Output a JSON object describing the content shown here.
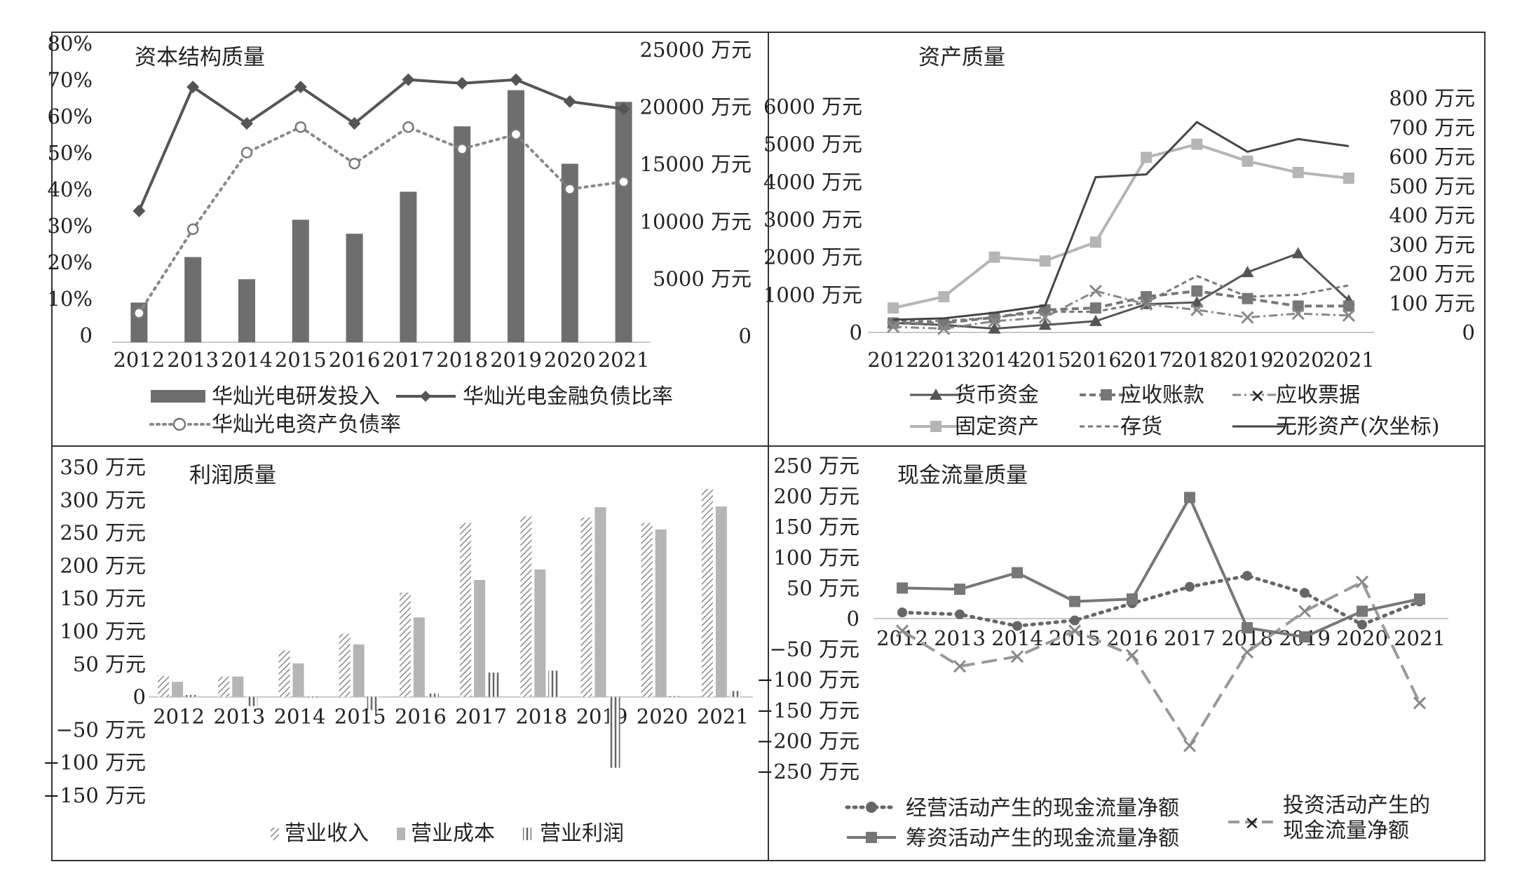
{
  "colors": {
    "dark": "#555555",
    "mid": "#777777",
    "light": "#b5b5b5",
    "dashed": "#8a8a8a",
    "axis": "#c8c8c8",
    "frame": "#333333"
  },
  "chart_data": [
    {
      "type": "bar",
      "title": "资本结构质量",
      "categories": [
        "2012",
        "2013",
        "2014",
        "2015",
        "2016",
        "2017",
        "2018",
        "2019",
        "2020",
        "2021"
      ],
      "y_ticks": [
        "80%",
        "70%",
        "60%",
        "50%",
        "40%",
        "30%",
        "20%",
        "10%",
        "0"
      ],
      "y2_ticks": [
        "25000 万元",
        "20000 万元",
        "15000 万元",
        "10000 万元",
        "5000 万元",
        "0"
      ],
      "ylim": [
        0,
        0.8
      ],
      "y2lim": [
        0,
        25000
      ],
      "series": [
        {
          "name": "华灿光电研发投入",
          "kind": "bar",
          "axis": "right",
          "values": [
            3400,
            7300,
            5400,
            10500,
            9300,
            12900,
            18500,
            21600,
            15300,
            20600
          ]
        },
        {
          "name": "华灿光电金融负债比率",
          "kind": "line",
          "marker": "diamond",
          "axis": "left",
          "values": [
            0.36,
            0.7,
            0.6,
            0.7,
            0.6,
            0.72,
            0.71,
            0.72,
            0.66,
            0.64
          ]
        },
        {
          "name": "华灿光电资产负债率",
          "kind": "line",
          "style": "dotted",
          "marker": "circle",
          "axis": "left",
          "values": [
            0.08,
            0.31,
            0.52,
            0.59,
            0.49,
            0.59,
            0.53,
            0.57,
            0.42,
            0.44
          ]
        }
      ]
    },
    {
      "type": "line",
      "title": "资产质量",
      "categories": [
        "2012",
        "2013",
        "2014",
        "2015",
        "2016",
        "2017",
        "2018",
        "2019",
        "2020",
        "2021"
      ],
      "y_ticks": [
        "6000 万元",
        "5000 万元",
        "4000 万元",
        "3000 万元",
        "2000 万元",
        "1000 万元",
        "0"
      ],
      "y2_ticks": [
        "800 万元",
        "700 万元",
        "600 万元",
        "500 万元",
        "400 万元",
        "300 万元",
        "200 万元",
        "100 万元",
        "0"
      ],
      "ylim": [
        0,
        6000
      ],
      "y2lim": [
        0,
        800
      ],
      "series": [
        {
          "name": "货币资金",
          "marker": "triangle",
          "axis": "left",
          "values": [
            250,
            200,
            100,
            200,
            300,
            750,
            800,
            1600,
            2100,
            850
          ]
        },
        {
          "name": "应收账款",
          "marker": "square",
          "style": "dashed",
          "axis": "left",
          "values": [
            250,
            250,
            400,
            600,
            650,
            950,
            1100,
            900,
            700,
            700
          ]
        },
        {
          "name": "应收票据",
          "marker": "x",
          "style": "dashdot",
          "axis": "left",
          "values": [
            150,
            100,
            300,
            400,
            1100,
            750,
            600,
            400,
            500,
            450
          ]
        },
        {
          "name": "固定资产",
          "marker": "square",
          "axis": "left",
          "values": [
            650,
            950,
            2000,
            1900,
            2400,
            4650,
            5000,
            4550,
            4250,
            4100
          ]
        },
        {
          "name": "存货",
          "style": "dashed",
          "axis": "left",
          "values": [
            300,
            300,
            400,
            550,
            550,
            800,
            1500,
            950,
            1000,
            1250
          ]
        },
        {
          "name": "无形资产(次坐标)",
          "axis": "right",
          "values": [
            45,
            50,
            70,
            95,
            550,
            560,
            745,
            640,
            685,
            660
          ]
        }
      ]
    },
    {
      "type": "bar",
      "title": "利润质量",
      "categories": [
        "2012",
        "2013",
        "2014",
        "2015",
        "2016",
        "2017",
        "2018",
        "2019",
        "2020",
        "2021"
      ],
      "y_ticks": [
        "350 万元",
        "300 万元",
        "250 万元",
        "200 万元",
        "150 万元",
        "100 万元",
        "50 万元",
        "0",
        "−50 万元",
        "−100 万元",
        "−150 万元"
      ],
      "ylim": [
        -150,
        350
      ],
      "series": [
        {
          "name": "营业收入",
          "pattern": "hatch",
          "values": [
            32,
            31,
            71,
            96,
            159,
            265,
            275,
            273,
            265,
            317
          ]
        },
        {
          "name": "营业成本",
          "pattern": "solid",
          "values": [
            23,
            31,
            51,
            80,
            121,
            178,
            194,
            289,
            255,
            290
          ]
        },
        {
          "name": "营业利润",
          "pattern": "vertical",
          "values": [
            3,
            -14,
            0,
            -20,
            5,
            37,
            40,
            -108,
            1,
            9
          ]
        }
      ]
    },
    {
      "type": "line",
      "title": "现金流量质量",
      "categories": [
        "2012",
        "2013",
        "2014",
        "2015",
        "2016",
        "2017",
        "2018",
        "2019",
        "2020",
        "2021"
      ],
      "y_ticks": [
        "250 万元",
        "200 万元",
        "150 万元",
        "100 万元",
        "50 万元",
        "0",
        "−50 万元",
        "−100 万元",
        "−150 万元",
        "−200 万元",
        "−250 万元"
      ],
      "ylim": [
        -250,
        250
      ],
      "series": [
        {
          "name": "经营活动产生的现金流量净额",
          "marker": "circle",
          "style": "dotted",
          "values": [
            10,
            7,
            -12,
            -3,
            25,
            52,
            70,
            42,
            -10,
            28
          ]
        },
        {
          "name": "投资活动产生的现金流量净额",
          "marker": "x",
          "style": "dashed",
          "values": [
            -20,
            -78,
            -62,
            -20,
            -60,
            -208,
            -55,
            12,
            60,
            -138
          ]
        },
        {
          "name": "筹资活动产生的现金流量净额",
          "marker": "square",
          "values": [
            50,
            48,
            75,
            28,
            32,
            198,
            -15,
            -30,
            12,
            32
          ]
        }
      ]
    }
  ]
}
